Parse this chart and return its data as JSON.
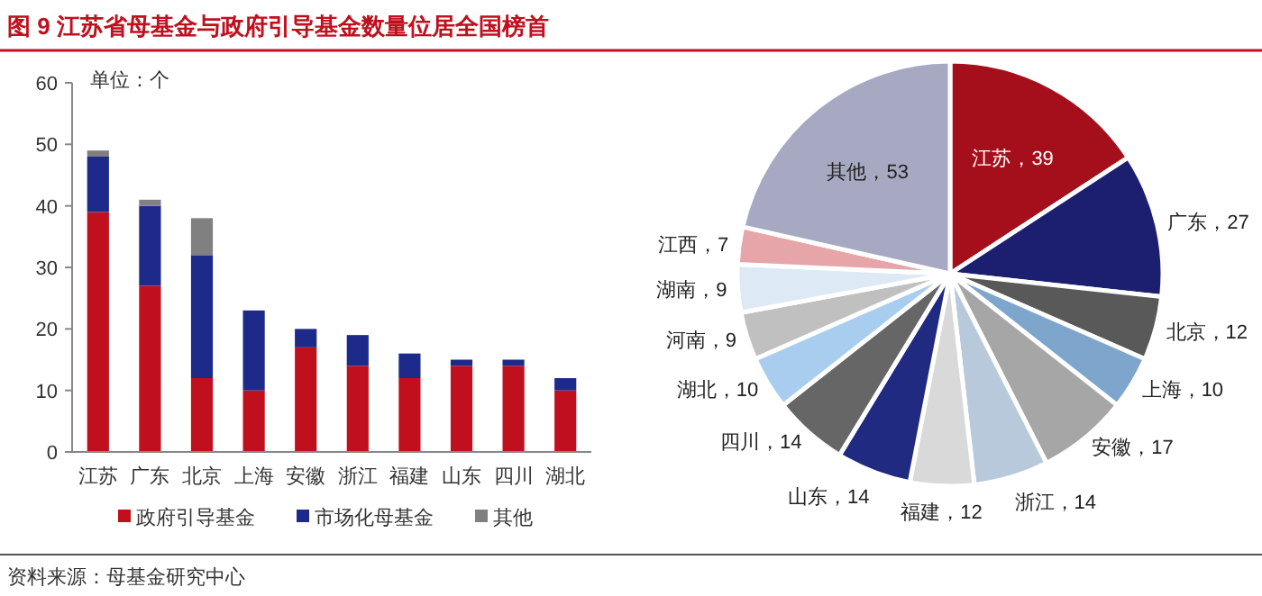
{
  "chart_data": [
    {
      "type": "bar",
      "title": "图 9 江苏省母基金与政府引导基金数量位居全国榜首",
      "ylabel": "单位：个",
      "categories": [
        "江苏",
        "广东",
        "北京",
        "上海",
        "安徽",
        "浙江",
        "福建",
        "山东",
        "四川",
        "湖北"
      ],
      "stacked": true,
      "series": [
        {
          "name": "政府引导基金",
          "color": "#c0101e",
          "values": [
            39,
            27,
            12,
            10,
            17,
            14,
            12,
            14,
            14,
            10
          ]
        },
        {
          "name": "市场化母基金",
          "color": "#1e2a8a",
          "values": [
            9,
            13,
            20,
            13,
            3,
            5,
            4,
            1,
            1,
            2
          ]
        },
        {
          "name": "其他",
          "color": "#808080",
          "values": [
            1,
            1,
            6,
            0,
            0,
            0,
            0,
            0,
            0,
            0
          ]
        }
      ],
      "ylim": [
        0,
        60
      ],
      "yticks": [
        0,
        10,
        20,
        30,
        40,
        50,
        60
      ],
      "legend": "bottom",
      "annotations": [
        "资料来源：母基金研究中心"
      ]
    },
    {
      "type": "pie",
      "categories": [
        "江苏",
        "广东",
        "北京",
        "上海",
        "安徽",
        "浙江",
        "福建",
        "山东",
        "四川",
        "湖北",
        "河南",
        "湖南",
        "江西",
        "其他"
      ],
      "values": [
        39,
        27,
        12,
        10,
        17,
        14,
        12,
        14,
        14,
        10,
        9,
        9,
        7,
        53
      ],
      "colors": [
        "#a50f1c",
        "#1c1f70",
        "#595959",
        "#7ea6cc",
        "#a6a6a6",
        "#b8c9dc",
        "#d9d9d9",
        "#1f2a80",
        "#666666",
        "#a8cdee",
        "#c0c0c0",
        "#dde9f5",
        "#e6a5a9",
        "#a7a9c2"
      ],
      "value_labels": [
        "，39",
        "，27",
        "，12",
        "，10",
        "，17",
        "，14",
        "，12",
        "，14",
        "，14",
        "，10",
        "，9",
        "，9",
        "，7",
        "，53"
      ]
    }
  ]
}
